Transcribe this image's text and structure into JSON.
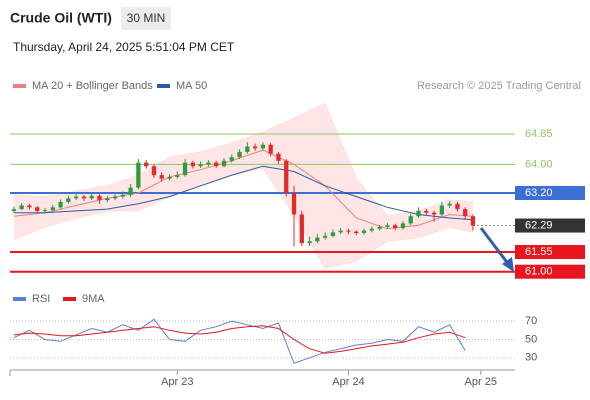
{
  "chart_data": [
    {
      "type": "candlestick",
      "title": "Crude Oil (WTI)",
      "interval": "30 MIN",
      "subtitle": "Thursday, April 24, 2025 5:51:04 PM CET",
      "credit": "Research © 2025 Trading Central",
      "up_color": "#2e9b3e",
      "down_color": "#e02b2b",
      "xlim": [
        -0.5,
        64.4
      ],
      "ylim": [
        60.6,
        65.8
      ],
      "x": [
        0,
        1,
        2,
        3,
        4,
        5,
        6,
        7,
        8,
        9,
        10,
        11,
        12,
        13,
        14,
        15,
        16,
        17,
        18,
        19,
        20,
        21,
        22,
        23,
        24,
        25,
        26,
        27,
        28,
        29,
        30,
        31,
        32,
        33,
        34,
        35,
        36,
        37,
        38,
        39,
        40,
        41,
        42,
        43,
        44,
        45,
        46,
        47,
        48,
        49,
        50,
        51,
        52,
        53,
        54,
        55,
        56,
        57,
        58,
        59
      ],
      "open": [
        62.7,
        62.75,
        62.85,
        62.8,
        62.7,
        62.72,
        62.8,
        62.95,
        63.05,
        63.1,
        63.05,
        63.12,
        63.0,
        63.05,
        63.1,
        63.15,
        63.35,
        64.05,
        63.95,
        63.7,
        63.6,
        63.65,
        63.7,
        64.05,
        63.95,
        64.0,
        64.05,
        63.95,
        64.1,
        64.2,
        64.35,
        64.5,
        64.45,
        64.55,
        64.3,
        64.1,
        63.2,
        62.6,
        61.8,
        61.85,
        61.95,
        62.0,
        62.1,
        62.15,
        62.12,
        62.08,
        62.15,
        62.2,
        62.25,
        62.3,
        62.22,
        62.35,
        62.55,
        62.7,
        62.65,
        62.6,
        62.85,
        62.9,
        62.75,
        62.55
      ],
      "high": [
        62.82,
        62.92,
        62.9,
        62.84,
        62.78,
        62.86,
        63.02,
        63.12,
        63.18,
        63.14,
        63.2,
        63.16,
        63.12,
        63.16,
        63.24,
        63.45,
        64.15,
        64.12,
        64.0,
        63.78,
        63.72,
        63.8,
        64.15,
        64.1,
        64.08,
        64.12,
        64.1,
        64.18,
        64.28,
        64.42,
        64.62,
        64.58,
        64.62,
        64.6,
        64.35,
        64.15,
        63.4,
        62.7,
        61.98,
        62.05,
        62.1,
        62.18,
        62.22,
        62.2,
        62.16,
        62.2,
        62.26,
        62.3,
        62.36,
        62.34,
        62.42,
        62.62,
        62.8,
        62.76,
        62.7,
        62.95,
        62.98,
        62.95,
        62.8,
        62.6
      ],
      "low": [
        62.65,
        62.72,
        62.74,
        62.64,
        62.62,
        62.68,
        62.76,
        62.9,
        63.0,
        62.98,
        63.0,
        62.9,
        62.94,
        63.0,
        63.04,
        63.08,
        63.3,
        63.88,
        63.62,
        63.52,
        63.55,
        63.6,
        63.66,
        63.88,
        63.9,
        63.94,
        63.9,
        63.92,
        64.05,
        64.15,
        64.3,
        64.38,
        64.4,
        64.22,
        64.02,
        63.1,
        61.7,
        61.72,
        61.72,
        61.8,
        61.9,
        61.96,
        62.05,
        62.05,
        62.02,
        62.04,
        62.1,
        62.15,
        62.2,
        62.16,
        62.18,
        62.3,
        62.5,
        62.58,
        62.4,
        62.55,
        62.78,
        62.68,
        62.45,
        62.15
      ],
      "close": [
        62.75,
        62.85,
        62.8,
        62.7,
        62.72,
        62.8,
        62.95,
        63.05,
        63.1,
        63.05,
        63.12,
        63.0,
        63.05,
        63.1,
        63.15,
        63.35,
        64.05,
        63.95,
        63.7,
        63.6,
        63.65,
        63.7,
        64.05,
        63.95,
        64.0,
        64.05,
        63.95,
        64.1,
        64.2,
        64.35,
        64.5,
        64.45,
        64.55,
        64.3,
        64.1,
        63.2,
        62.6,
        61.8,
        61.85,
        61.95,
        62.0,
        62.1,
        62.15,
        62.12,
        62.08,
        62.15,
        62.2,
        62.25,
        62.3,
        62.22,
        62.35,
        62.55,
        62.7,
        62.65,
        62.6,
        62.85,
        62.9,
        62.75,
        62.55,
        62.29
      ],
      "overlay_x": [
        0,
        4,
        8,
        12,
        16,
        20,
        24,
        28,
        32,
        36,
        40,
        44,
        48,
        52,
        56,
        59
      ],
      "overlays": [
        {
          "name": "MA 20 + Bollinger Bands",
          "color": "#f08080",
          "band_color": "#ffdede",
          "values": [
            62.55,
            62.65,
            62.85,
            63.05,
            63.2,
            63.65,
            63.85,
            64.1,
            64.4,
            64.0,
            63.4,
            62.5,
            62.2,
            62.3,
            62.6,
            62.55
          ],
          "upper": [
            63.15,
            63.1,
            63.25,
            63.4,
            63.7,
            64.2,
            64.35,
            64.6,
            64.9,
            65.3,
            65.7,
            63.6,
            62.55,
            62.7,
            63.0,
            62.95
          ],
          "lower": [
            61.9,
            62.25,
            62.5,
            62.7,
            62.7,
            63.1,
            63.4,
            63.7,
            63.9,
            62.6,
            61.1,
            61.3,
            61.85,
            61.95,
            62.25,
            62.1
          ]
        },
        {
          "name": "MA 50",
          "color": "#2c5aa0",
          "values": [
            62.65,
            62.65,
            62.7,
            62.75,
            62.9,
            63.1,
            63.4,
            63.7,
            63.95,
            63.8,
            63.4,
            63.1,
            62.8,
            62.6,
            62.5,
            62.45
          ]
        }
      ],
      "levels": [
        {
          "value": 64.85,
          "label": "64.85",
          "color": "#8cc85e",
          "kind": "text"
        },
        {
          "value": 64.0,
          "label": "64.00",
          "color": "#8cc85e",
          "kind": "text"
        },
        {
          "value": 63.2,
          "label": "63.20",
          "color": "#3b6fd4",
          "kind": "box"
        },
        {
          "value": 62.29,
          "label": "62.29",
          "color": "#333333",
          "kind": "current"
        },
        {
          "value": 61.55,
          "label": "61.55",
          "color": "#e8141e",
          "kind": "box"
        },
        {
          "value": 61.0,
          "label": "61.00",
          "color": "#e8141e",
          "kind": "box"
        }
      ]
    },
    {
      "type": "line",
      "xlim": [
        -0.5,
        64.4
      ],
      "ylim": [
        20,
        80
      ],
      "yticks": [
        70,
        50,
        30
      ],
      "xticks": [
        {
          "value": 21,
          "label": "Apr 23"
        },
        {
          "value": 43,
          "label": "Apr 24"
        },
        {
          "value": 60,
          "label": "Apr 25"
        }
      ],
      "x": [
        0,
        2,
        4,
        6,
        8,
        10,
        12,
        14,
        16,
        18,
        20,
        22,
        24,
        26,
        28,
        30,
        32,
        34,
        36,
        38,
        40,
        42,
        44,
        46,
        48,
        50,
        52,
        54,
        56,
        58
      ],
      "series": [
        {
          "name": "RSI",
          "color": "#5b7fd6",
          "values": [
            52,
            60,
            50,
            48,
            55,
            62,
            58,
            66,
            60,
            72,
            50,
            48,
            60,
            64,
            70,
            66,
            62,
            68,
            24,
            30,
            36,
            40,
            44,
            46,
            50,
            48,
            64,
            58,
            66,
            38
          ]
        },
        {
          "name": "9MA",
          "color": "#e8141e",
          "values": [
            55,
            57,
            56,
            54,
            54,
            56,
            58,
            60,
            62,
            64,
            60,
            57,
            56,
            58,
            62,
            64,
            65,
            62,
            50,
            40,
            35,
            37,
            40,
            43,
            45,
            47,
            52,
            56,
            58,
            52
          ]
        }
      ]
    }
  ]
}
